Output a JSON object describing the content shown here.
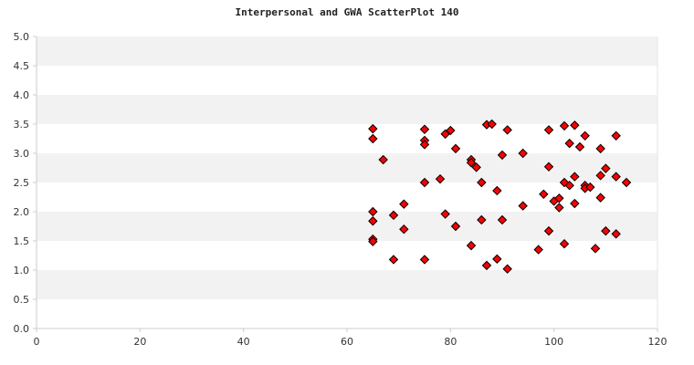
{
  "chart_data": {
    "type": "scatter",
    "title": "Interpersonal and GWA ScatterPlot 140",
    "xlabel": "",
    "ylabel": "",
    "xlim": [
      0,
      120
    ],
    "ylim": [
      0,
      5
    ],
    "x_ticks": [
      "0",
      "20",
      "40",
      "60",
      "80",
      "100",
      "120"
    ],
    "y_ticks": [
      "0.0",
      "0.5",
      "1.0",
      "1.5",
      "2.0",
      "2.5",
      "3.0",
      "3.5",
      "4.0",
      "4.5",
      "5.0"
    ],
    "grid": "horizontal alternating bands",
    "legend": "none",
    "colors": {
      "band": "#f2f2f2",
      "background": "#ffffff",
      "marker_fill": "#ff0000",
      "marker_stroke": "#000000",
      "axis": "#cccccc",
      "text": "#333333"
    },
    "marker": "diamond",
    "points": [
      {
        "x": 65,
        "y": 3.42
      },
      {
        "x": 65,
        "y": 3.25
      },
      {
        "x": 65,
        "y": 2.0
      },
      {
        "x": 65,
        "y": 1.84
      },
      {
        "x": 65,
        "y": 1.53
      },
      {
        "x": 65,
        "y": 1.49
      },
      {
        "x": 67,
        "y": 2.89
      },
      {
        "x": 69,
        "y": 1.94
      },
      {
        "x": 69,
        "y": 1.18
      },
      {
        "x": 71,
        "y": 2.13
      },
      {
        "x": 71,
        "y": 1.7
      },
      {
        "x": 75,
        "y": 3.41
      },
      {
        "x": 75,
        "y": 3.22
      },
      {
        "x": 75,
        "y": 3.15
      },
      {
        "x": 75,
        "y": 2.5
      },
      {
        "x": 75,
        "y": 1.18
      },
      {
        "x": 78,
        "y": 2.56
      },
      {
        "x": 79,
        "y": 3.33
      },
      {
        "x": 79,
        "y": 1.96
      },
      {
        "x": 80,
        "y": 3.39
      },
      {
        "x": 81,
        "y": 3.08
      },
      {
        "x": 81,
        "y": 1.75
      },
      {
        "x": 84,
        "y": 2.89
      },
      {
        "x": 84,
        "y": 2.84
      },
      {
        "x": 84,
        "y": 1.42
      },
      {
        "x": 85,
        "y": 2.76
      },
      {
        "x": 86,
        "y": 2.5
      },
      {
        "x": 86,
        "y": 1.86
      },
      {
        "x": 87,
        "y": 3.49
      },
      {
        "x": 87,
        "y": 1.08
      },
      {
        "x": 88,
        "y": 3.5
      },
      {
        "x": 89,
        "y": 2.36
      },
      {
        "x": 89,
        "y": 1.19
      },
      {
        "x": 90,
        "y": 2.97
      },
      {
        "x": 90,
        "y": 1.86
      },
      {
        "x": 91,
        "y": 3.4
      },
      {
        "x": 91,
        "y": 1.02
      },
      {
        "x": 94,
        "y": 3.0
      },
      {
        "x": 94,
        "y": 2.1
      },
      {
        "x": 97,
        "y": 1.35
      },
      {
        "x": 98,
        "y": 2.3
      },
      {
        "x": 99,
        "y": 3.4
      },
      {
        "x": 99,
        "y": 2.77
      },
      {
        "x": 99,
        "y": 1.67
      },
      {
        "x": 100,
        "y": 2.18
      },
      {
        "x": 101,
        "y": 2.23
      },
      {
        "x": 101,
        "y": 2.07
      },
      {
        "x": 102,
        "y": 3.47
      },
      {
        "x": 102,
        "y": 2.5
      },
      {
        "x": 102,
        "y": 1.45
      },
      {
        "x": 103,
        "y": 3.17
      },
      {
        "x": 103,
        "y": 2.45
      },
      {
        "x": 104,
        "y": 3.48
      },
      {
        "x": 104,
        "y": 2.6
      },
      {
        "x": 104,
        "y": 2.14
      },
      {
        "x": 105,
        "y": 3.11
      },
      {
        "x": 106,
        "y": 3.3
      },
      {
        "x": 106,
        "y": 2.45
      },
      {
        "x": 106,
        "y": 2.4
      },
      {
        "x": 107,
        "y": 2.42
      },
      {
        "x": 108,
        "y": 1.37
      },
      {
        "x": 109,
        "y": 3.08
      },
      {
        "x": 109,
        "y": 2.62
      },
      {
        "x": 109,
        "y": 2.24
      },
      {
        "x": 110,
        "y": 2.74
      },
      {
        "x": 110,
        "y": 1.67
      },
      {
        "x": 112,
        "y": 3.3
      },
      {
        "x": 112,
        "y": 2.6
      },
      {
        "x": 112,
        "y": 1.62
      },
      {
        "x": 114,
        "y": 2.5
      }
    ]
  }
}
